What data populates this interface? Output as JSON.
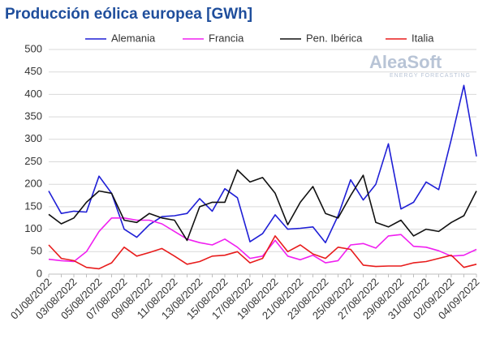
{
  "chart_data": {
    "type": "line",
    "title": "Producción eólica europea [GWh]",
    "watermark": [
      "AleaSoft",
      "ENERGY FORECASTING"
    ],
    "categories": [
      "01/08/2022",
      null,
      "03/08/2022",
      null,
      "05/08/2022",
      null,
      "07/08/2022",
      null,
      "09/08/2022",
      null,
      "11/08/2022",
      null,
      "13/08/2022",
      null,
      "15/08/2022",
      null,
      "17/08/2022",
      null,
      "19/08/2022",
      null,
      "21/08/2022",
      null,
      "23/08/2022",
      null,
      "25/08/2022",
      null,
      "27/08/2022",
      null,
      "29/08/2022",
      null,
      "31/08/2022",
      null,
      "02/09/2022",
      null,
      "04/09/2022"
    ],
    "series": [
      {
        "name": "Alemania",
        "color": "#1f1fd6",
        "values": [
          185,
          135,
          140,
          138,
          218,
          180,
          100,
          82,
          110,
          128,
          130,
          135,
          168,
          140,
          190,
          170,
          72,
          90,
          132,
          100,
          102,
          105,
          70,
          130,
          210,
          165,
          200,
          290,
          145,
          160,
          205,
          188,
          300,
          420,
          262
        ]
      },
      {
        "name": "Francia",
        "color": "#f020f0",
        "values": [
          33,
          30,
          28,
          50,
          95,
          125,
          125,
          120,
          120,
          112,
          95,
          78,
          70,
          65,
          78,
          60,
          35,
          40,
          75,
          40,
          32,
          42,
          25,
          30,
          65,
          68,
          58,
          85,
          88,
          62,
          60,
          52,
          40,
          42,
          55
        ]
      },
      {
        "name": "Pen. Ibérica",
        "color": "#111111",
        "values": [
          133,
          112,
          125,
          160,
          185,
          180,
          120,
          115,
          135,
          125,
          120,
          75,
          150,
          160,
          160,
          232,
          205,
          215,
          180,
          110,
          160,
          195,
          135,
          125,
          175,
          220,
          115,
          105,
          120,
          85,
          100,
          95,
          115,
          130,
          185
        ]
      },
      {
        "name": "Italia",
        "color": "#e81c1c",
        "values": [
          65,
          35,
          30,
          15,
          12,
          25,
          60,
          40,
          48,
          57,
          40,
          22,
          28,
          40,
          42,
          50,
          25,
          35,
          85,
          50,
          65,
          45,
          35,
          60,
          55,
          20,
          17,
          18,
          18,
          25,
          28,
          35,
          42,
          15,
          22
        ]
      }
    ],
    "ylim": [
      0,
      500
    ],
    "yticks": [
      0,
      50,
      100,
      150,
      200,
      250,
      300,
      350,
      400,
      450,
      500
    ],
    "grid": true,
    "legend": "top"
  }
}
